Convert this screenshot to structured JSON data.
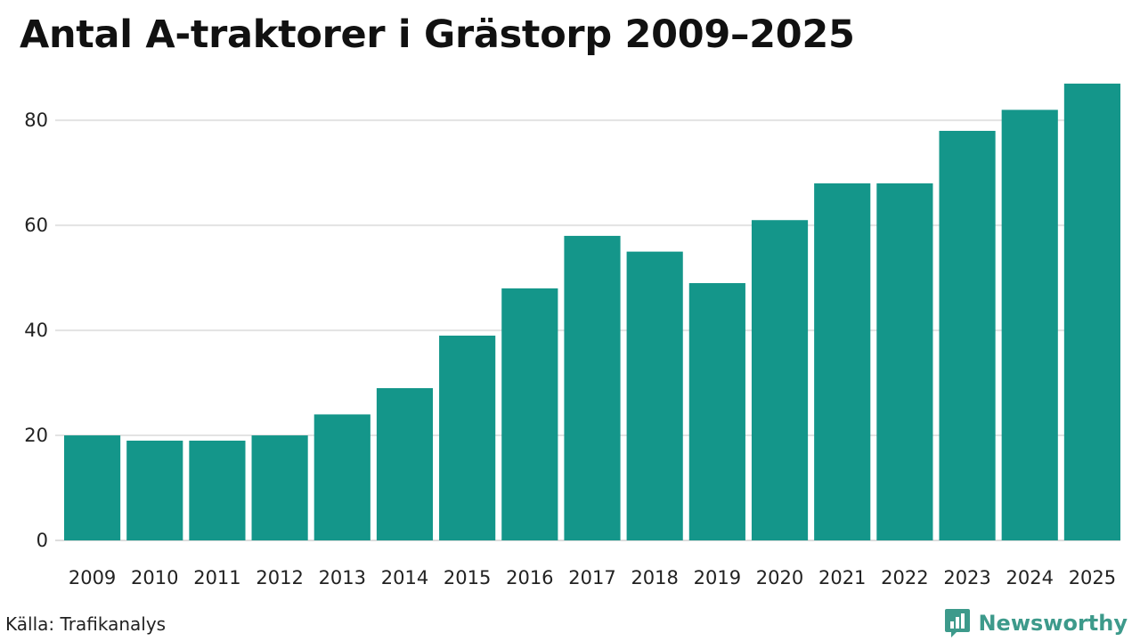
{
  "title": "Antal A-traktorer i Grästorp 2009–2025",
  "source": "Källa: Trafikanalys",
  "brand": {
    "name": "Newsworthy",
    "icon": "newsworthy-logo-icon",
    "color": "#3d9a8b"
  },
  "colors": {
    "bar": "#14968a",
    "grid": "#e3e3e3",
    "axis": "#dddddd"
  },
  "chart_data": {
    "type": "bar",
    "title": "Antal A-traktorer i Grästorp 2009–2025",
    "xlabel": "",
    "ylabel": "",
    "categories": [
      "2009",
      "2010",
      "2011",
      "2012",
      "2013",
      "2014",
      "2015",
      "2016",
      "2017",
      "2018",
      "2019",
      "2020",
      "2021",
      "2022",
      "2023",
      "2024",
      "2025"
    ],
    "values": [
      20,
      19,
      19,
      20,
      24,
      29,
      39,
      48,
      58,
      55,
      49,
      61,
      68,
      68,
      78,
      82,
      87
    ],
    "ylim": [
      0,
      88
    ],
    "yticks": [
      0,
      20,
      40,
      60,
      80
    ],
    "grid": true,
    "legend": "none"
  }
}
